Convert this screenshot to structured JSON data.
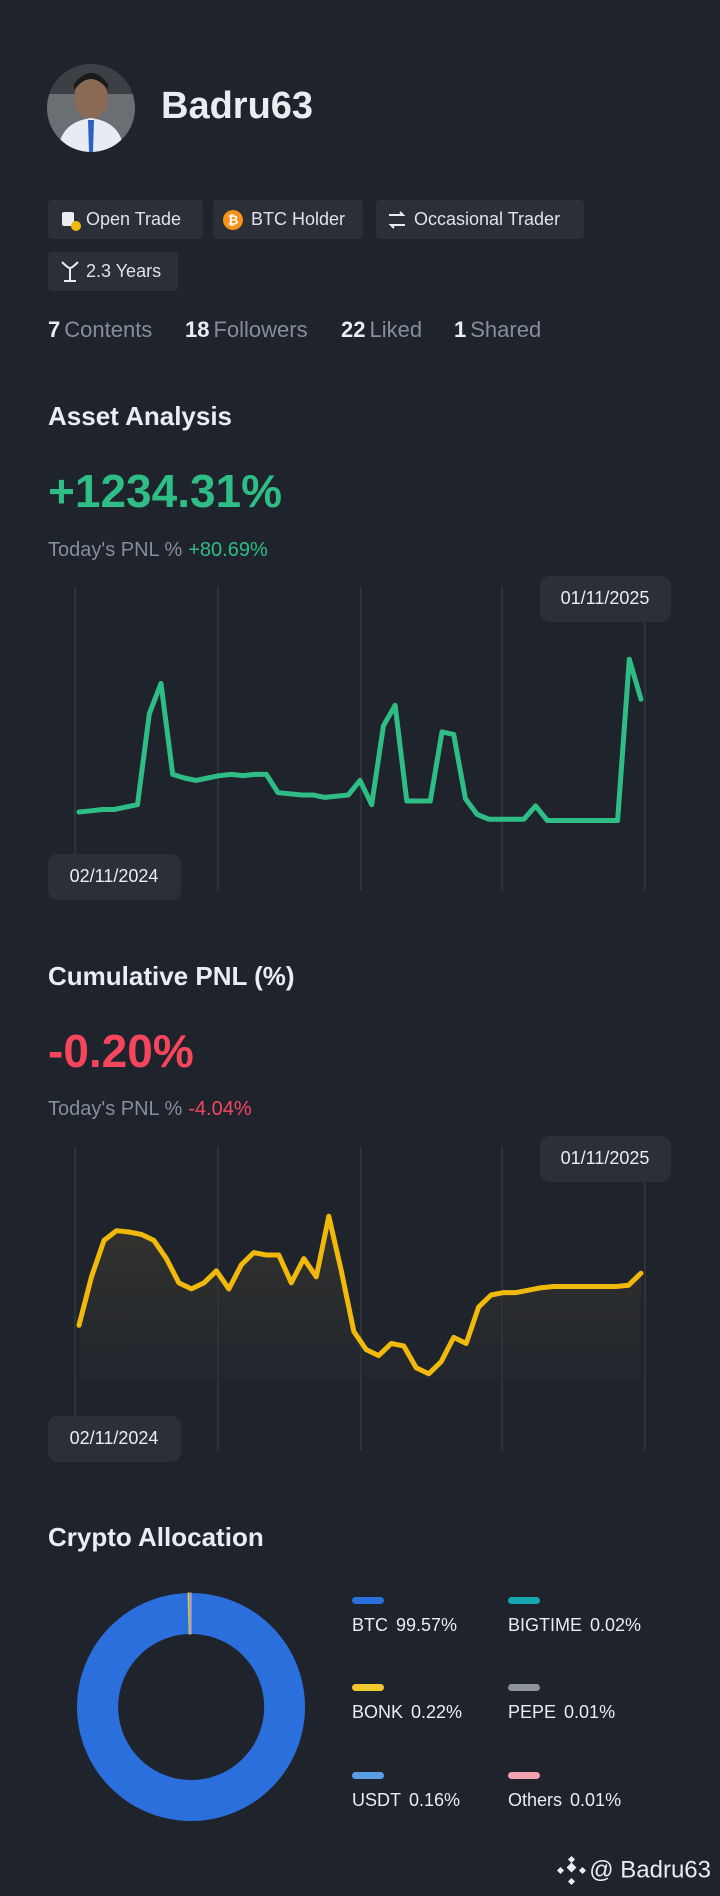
{
  "profile": {
    "name": "Badru63",
    "tags": [
      "Open Trade",
      "BTC Holder",
      "Occasional Trader",
      "2.3 Years"
    ],
    "stats": [
      {
        "value": 7,
        "label": "Contents"
      },
      {
        "value": 18,
        "label": "Followers"
      },
      {
        "value": 22,
        "label": "Liked"
      },
      {
        "value": 1,
        "label": "Shared"
      }
    ]
  },
  "asset_analysis": {
    "title": "Asset Analysis",
    "value": "+1234.31%",
    "today_label": "Today's PNL %",
    "today_value": "+80.69%",
    "chart": {
      "type": "line",
      "color": "#2ebd85",
      "start_label": "02/11/2024",
      "end_label": "01/11/2025",
      "ylim": [
        0,
        160
      ],
      "values": [
        19,
        20,
        21,
        21,
        23,
        25,
        100,
        125,
        50,
        47,
        45,
        47,
        49,
        50,
        49,
        50,
        50,
        35,
        34,
        33,
        33,
        31,
        32,
        33,
        45,
        25,
        90,
        107,
        28,
        28,
        28,
        85,
        83,
        30,
        17,
        13,
        13,
        13,
        13,
        24,
        12,
        12,
        12,
        12,
        12,
        12,
        12,
        145,
        112
      ]
    }
  },
  "cumulative_pnl": {
    "title": "Cumulative PNL (%)",
    "value": "-0.20%",
    "today_label": "Today's PNL %",
    "today_value": "-4.04%",
    "chart": {
      "type": "area",
      "color": "#f0b90b",
      "start_label": "02/11/2024",
      "end_label": "01/11/2025",
      "ylim": [
        0,
        160
      ],
      "values": [
        55,
        95,
        125,
        133,
        132,
        130,
        125,
        110,
        90,
        85,
        90,
        100,
        85,
        105,
        115,
        113,
        113,
        90,
        110,
        95,
        145,
        100,
        50,
        35,
        30,
        40,
        38,
        20,
        15,
        25,
        45,
        40,
        70,
        80,
        82,
        82,
        84,
        86,
        87,
        87,
        87,
        87,
        87,
        87,
        88,
        98
      ]
    }
  },
  "allocation": {
    "title": "Crypto Allocation",
    "chart": {
      "type": "pie",
      "categories": [
        "BTC",
        "BIGTIME",
        "BONK",
        "PEPE",
        "USDT",
        "Others"
      ],
      "values": [
        99.57,
        0.02,
        0.22,
        0.01,
        0.16,
        0.01
      ],
      "value_labels": [
        "99.57%",
        "0.02%",
        "0.22%",
        "0.01%",
        "0.16%",
        "0.01%"
      ],
      "colors": [
        "#2a6fdb",
        "#19a6b3",
        "#f0c92d",
        "#8e949c",
        "#5d9ce6",
        "#f3a4b0"
      ]
    }
  },
  "watermark": "@ Badru63"
}
